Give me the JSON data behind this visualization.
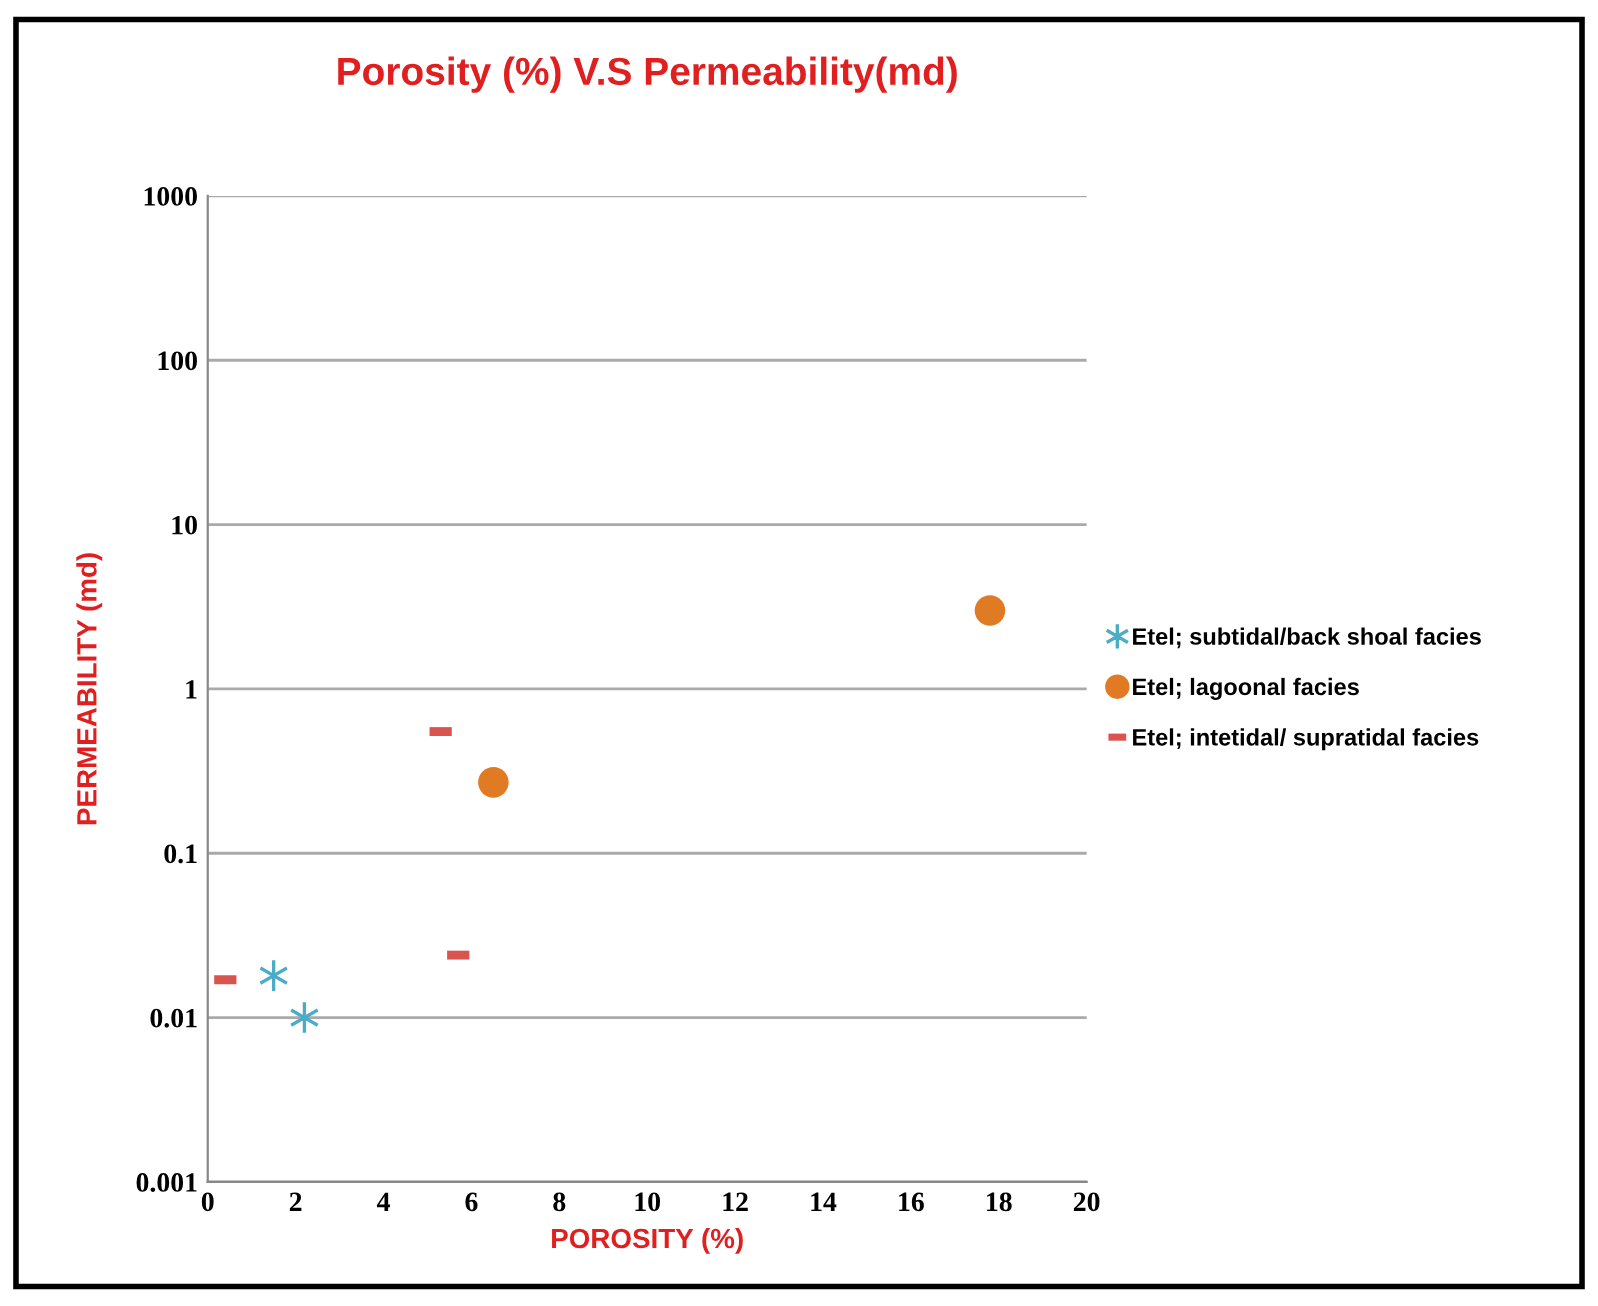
{
  "chart_data": {
    "type": "scatter",
    "title": "Porosity (%) V.S Permeability(md)",
    "xlabel": "POROSITY (%)",
    "ylabel": "PERMEABILITY (md)",
    "log": "y",
    "grid": "y",
    "legend": "right",
    "xlim": [
      0,
      20
    ],
    "xticks": [
      0,
      2,
      4,
      6,
      8,
      10,
      12,
      14,
      16,
      18,
      20
    ],
    "ylim": [
      0.001,
      1000
    ],
    "yticks": [
      0.001,
      0.01,
      0.1,
      1,
      10,
      100,
      1000
    ],
    "series": [
      {
        "name": "Etel; subtidal/back shoal facies",
        "color": "#4bacc6",
        "marker": "cross",
        "x": [
          1.5,
          2.2
        ],
        "values": [
          0.018,
          0.01
        ]
      },
      {
        "name": "Etel; lagoonal facies",
        "color": "#e07b24",
        "marker": "circle",
        "x": [
          6.5,
          17.8
        ],
        "values": [
          0.27,
          3
        ]
      },
      {
        "name": "Etel; intetidal/ supratidal facies",
        "color": "#d9534f",
        "marker": "square",
        "x": [
          0.4,
          5.3,
          5.7
        ],
        "values": [
          0.017,
          0.55,
          0.024
        ]
      }
    ]
  }
}
